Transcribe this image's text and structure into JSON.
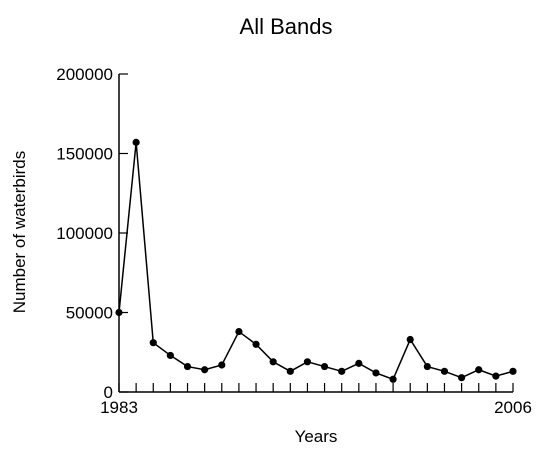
{
  "chart_data": {
    "type": "line",
    "title": "All Bands",
    "xlabel": "Years",
    "ylabel": "Number of waterbirds",
    "xlim": [
      1983,
      2006
    ],
    "ylim": [
      0,
      200000
    ],
    "x_tick_labels": [
      "1983",
      "2006"
    ],
    "y_ticks": [
      0,
      50000,
      100000,
      150000,
      200000
    ],
    "y_tick_labels": [
      "0",
      "50000",
      "100000",
      "150000",
      "200000"
    ],
    "grid": false,
    "legend": "none",
    "series": [
      {
        "x": [
          1983,
          1984,
          1985,
          1986,
          1987,
          1988,
          1989,
          1990,
          1991,
          1992,
          1993,
          1994,
          1995,
          1996,
          1997,
          1998,
          1999,
          2000,
          2001,
          2002,
          2003,
          2004,
          2005,
          2006
        ],
        "values": [
          50000,
          157000,
          31000,
          23000,
          16000,
          14000,
          17000,
          38000,
          30000,
          19000,
          13000,
          19000,
          16000,
          13000,
          18000,
          12000,
          8000,
          33000,
          16000,
          13000,
          9000,
          14000,
          10000,
          13000
        ],
        "color": "#000000"
      }
    ]
  }
}
